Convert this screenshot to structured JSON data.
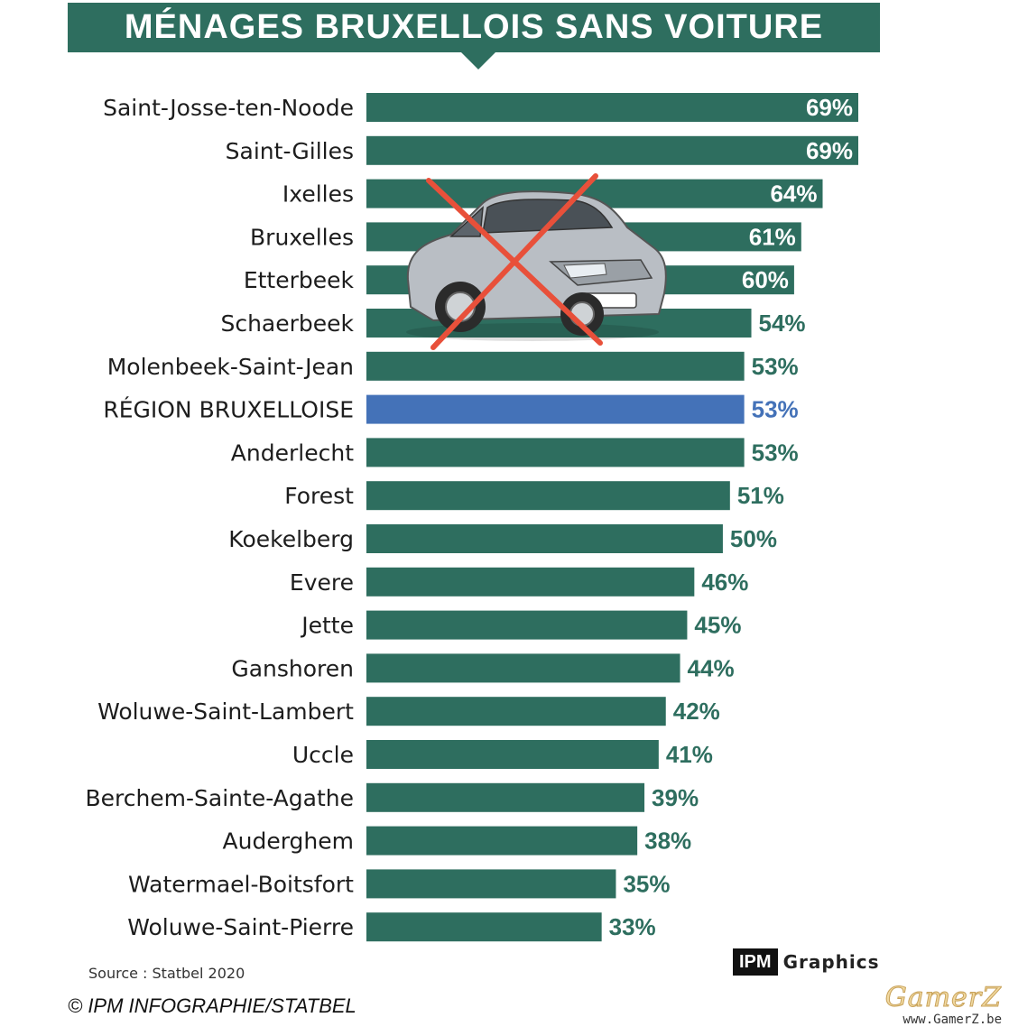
{
  "title": "MÉNAGES BRUXELLOIS SANS VOITURE",
  "colors": {
    "bar": "#2e6e5f",
    "highlight": "#4472b8",
    "value_inside": "#ffffff",
    "value_outside": "#2e6e5f"
  },
  "chart_data": {
    "type": "bar",
    "orientation": "horizontal",
    "title": "MÉNAGES BRUXELLOIS SANS VOITURE",
    "unit": "%",
    "categories": [
      "Saint-Josse-ten-Noode",
      "Saint-Gilles",
      "Ixelles",
      "Bruxelles",
      "Etterbeek",
      "Schaerbeek",
      "Molenbeek-Saint-Jean",
      "RÉGION BRUXELLOISE",
      "Anderlecht",
      "Forest",
      "Koekelberg",
      "Evere",
      "Jette",
      "Ganshoren",
      "Woluwe-Saint-Lambert",
      "Uccle",
      "Berchem-Sainte-Agathe",
      "Auderghem",
      "Watermael-Boitsfort",
      "Woluwe-Saint-Pierre"
    ],
    "values": [
      69,
      69,
      64,
      61,
      60,
      54,
      53,
      53,
      53,
      51,
      50,
      46,
      45,
      44,
      42,
      41,
      39,
      38,
      35,
      33
    ],
    "value_labels": [
      "69%",
      "69%",
      "64%",
      "61%",
      "60%",
      "54%",
      "53%",
      "53%",
      "53%",
      "51%",
      "50%",
      "46%",
      "45%",
      "44%",
      "42%",
      "41%",
      "39%",
      "38%",
      "35%",
      "33%"
    ],
    "highlight_category": "RÉGION BRUXELLOISE",
    "xlim": [
      0,
      69
    ],
    "grid": false,
    "legend": "none"
  },
  "footer": {
    "source": "Source : Statbel 2020",
    "credit": "© IPM INFOGRAPHIE/STATBEL",
    "logo_mark": "IPM",
    "logo_text": "Graphics"
  },
  "watermark": {
    "name": "GamerZ",
    "url": "www.GamerZ.be"
  },
  "icons": {
    "illustration": "crossed-out-car-icon"
  }
}
